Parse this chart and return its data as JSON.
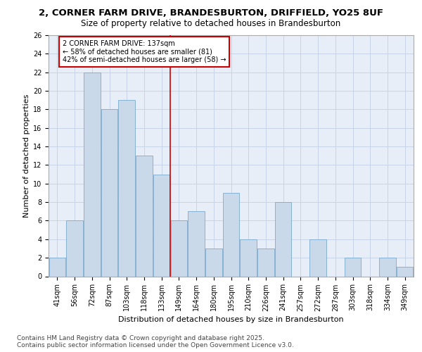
{
  "title_line1": "2, CORNER FARM DRIVE, BRANDESBURTON, DRIFFIELD, YO25 8UF",
  "title_line2": "Size of property relative to detached houses in Brandesburton",
  "xlabel": "Distribution of detached houses by size in Brandesburton",
  "ylabel": "Number of detached properties",
  "categories": [
    "41sqm",
    "56sqm",
    "72sqm",
    "87sqm",
    "103sqm",
    "118sqm",
    "133sqm",
    "149sqm",
    "164sqm",
    "180sqm",
    "195sqm",
    "210sqm",
    "226sqm",
    "241sqm",
    "257sqm",
    "272sqm",
    "287sqm",
    "303sqm",
    "318sqm",
    "334sqm",
    "349sqm"
  ],
  "values": [
    2,
    6,
    22,
    18,
    19,
    13,
    11,
    6,
    7,
    3,
    9,
    4,
    3,
    8,
    0,
    4,
    0,
    2,
    0,
    2,
    1
  ],
  "bar_color": "#c9d9ea",
  "bar_edge_color": "#7aaace",
  "vline_x": 6.5,
  "vline_color": "#cc0000",
  "annotation_text": "2 CORNER FARM DRIVE: 137sqm\n← 58% of detached houses are smaller (81)\n42% of semi-detached houses are larger (58) →",
  "annotation_box_color": "#ffffff",
  "annotation_box_edge_color": "#cc0000",
  "ylim": [
    0,
    26
  ],
  "yticks": [
    0,
    2,
    4,
    6,
    8,
    10,
    12,
    14,
    16,
    18,
    20,
    22,
    24,
    26
  ],
  "grid_color": "#c8d4e8",
  "background_color": "#e8eef8",
  "footer": "Contains HM Land Registry data © Crown copyright and database right 2025.\nContains public sector information licensed under the Open Government Licence v3.0.",
  "title_fontsize": 9.5,
  "subtitle_fontsize": 8.5,
  "axis_fontsize": 8,
  "tick_fontsize": 7,
  "annot_fontsize": 7,
  "footer_fontsize": 6.5
}
